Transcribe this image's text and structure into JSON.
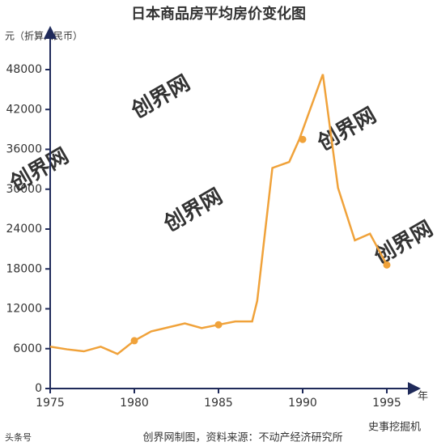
{
  "chart_data": {
    "type": "line",
    "title": "日本商品房平均房价变化图",
    "y_label": "元（折算人民币）",
    "x_label": "年",
    "source": "创界网制图，资料来源：不动产经济研究所",
    "watermark": "创界网",
    "logo_left": "头条号",
    "logo_right": "史事挖掘机",
    "color": "#f0a23a",
    "x": [
      1975,
      1976,
      1977,
      1978,
      1979,
      1980,
      1981,
      1982,
      1983,
      1984,
      1985,
      1986,
      1987,
      1987.3,
      1988.2,
      1989.2,
      1989.8,
      1991.2,
      1992.1,
      1993.1,
      1994,
      1995
    ],
    "values": [
      6300,
      5900,
      5600,
      6300,
      5200,
      7200,
      8600,
      9200,
      9800,
      9100,
      9600,
      10100,
      10100,
      13200,
      33200,
      34100,
      37500,
      47300,
      30200,
      22300,
      23300,
      18600
    ],
    "markers": {
      "x": [
        1980,
        1985,
        1990,
        1995
      ],
      "values": [
        7200,
        9600,
        37500,
        18600
      ]
    },
    "xlim": [
      1975,
      1997.2
    ],
    "ylim": [
      0,
      53000
    ],
    "xticks": [
      1975,
      1980,
      1985,
      1990,
      1995
    ],
    "yticks": [
      0,
      6000,
      12000,
      18000,
      24000,
      30000,
      36000,
      42000,
      48000
    ]
  }
}
